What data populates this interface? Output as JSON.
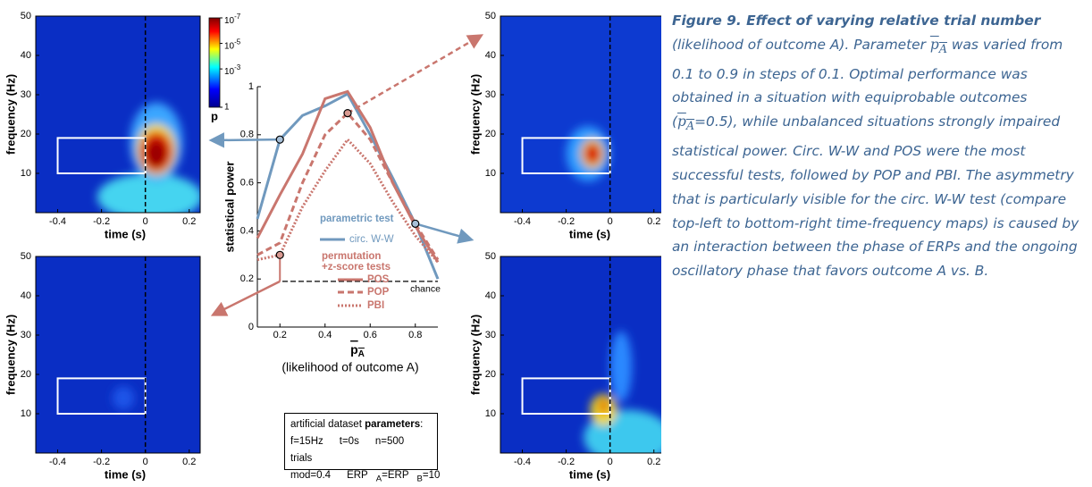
{
  "panels": [
    {
      "ylabel": "frequency (Hz)",
      "xlabel": "time (s)",
      "xticks": [
        -0.4,
        -0.2,
        0,
        0.2
      ],
      "yticks": [
        10,
        20,
        30,
        40,
        50
      ],
      "xlim": [
        -0.5,
        0.25
      ],
      "ylim": [
        0,
        50
      ]
    },
    {
      "ylabel": "frequency (Hz)",
      "xlabel": "time (s)",
      "xticks": [
        -0.4,
        -0.2,
        0,
        0.2
      ],
      "yticks": [
        10,
        20,
        30,
        40,
        50
      ],
      "xlim": [
        -0.5,
        0.25
      ],
      "ylim": [
        0,
        50
      ]
    },
    {
      "ylabel": "frequency (Hz)",
      "xlabel": "time (s)",
      "xticks": [
        -0.4,
        -0.2,
        0,
        0.2
      ],
      "yticks": [
        10,
        20,
        30,
        40,
        50
      ],
      "xlim": [
        -0.5,
        0.25
      ],
      "ylim": [
        0,
        50
      ]
    },
    {
      "ylabel": "frequency (Hz)",
      "xlabel": "time (s)",
      "xticks": [
        -0.4,
        -0.2,
        0,
        0.2
      ],
      "yticks": [
        10,
        20,
        30,
        40,
        50
      ],
      "xlim": [
        -0.5,
        0.25
      ],
      "ylim": [
        0,
        50
      ]
    }
  ],
  "colorbar": {
    "label": "p",
    "clim": [
      1e-07,
      1
    ],
    "ticks": [
      {
        "value": 1e-07,
        "label": {
          "base": "10",
          "exp": "-7"
        }
      },
      {
        "value": 1e-05,
        "label": {
          "base": "10",
          "exp": "-5"
        }
      },
      {
        "value": 0.001,
        "label": {
          "base": "10",
          "exp": "-3"
        }
      },
      1
    ]
  },
  "chart_data": {
    "type": "line",
    "ylabel": "statistical power",
    "xlabel": {
      "base": "p",
      "sub": "A"
    },
    "xlabel_note": "(likelihood of outcome A)",
    "x": [
      0.1,
      0.2,
      0.3,
      0.4,
      0.5,
      0.6,
      0.7,
      0.8,
      0.9
    ],
    "xlim": [
      0.1,
      0.9
    ],
    "ylim": [
      0,
      1
    ],
    "xticks": [
      0.2,
      0.4,
      0.6,
      0.8
    ],
    "yticks": [
      0,
      0.2,
      0.4,
      0.6,
      0.8,
      1
    ],
    "legend_groups": [
      {
        "title": [
          "parametric test"
        ],
        "series": [
          0
        ]
      },
      {
        "title": [
          "permutation",
          "+z-score tests"
        ],
        "series": [
          1,
          2,
          3
        ]
      }
    ],
    "series": [
      {
        "name": "circ. W-W",
        "color": "#7099be",
        "dash": "solid",
        "values": [
          0.45,
          0.78,
          0.88,
          0.92,
          0.97,
          0.8,
          0.62,
          0.43,
          0.2
        ]
      },
      {
        "name": "POS",
        "color": "#c9766e",
        "dash": "solid",
        "values": [
          0.37,
          0.55,
          0.72,
          0.95,
          0.98,
          0.83,
          0.6,
          0.42,
          0.27
        ]
      },
      {
        "name": "POP",
        "color": "#c9766e",
        "dash": "dashed",
        "values": [
          0.3,
          0.35,
          0.6,
          0.8,
          0.89,
          0.78,
          0.6,
          0.43,
          0.28
        ]
      },
      {
        "name": "PBI",
        "color": "#c9766e",
        "dash": "dotted",
        "values": [
          0.28,
          0.3,
          0.5,
          0.65,
          0.78,
          0.68,
          0.52,
          0.38,
          0.27
        ]
      }
    ],
    "chance": {
      "label": "chance",
      "value": 0.19
    }
  },
  "params": {
    "title": [
      {
        "text": "artificial dataset "
      },
      {
        "text": "parameters",
        "bold": true
      },
      {
        "text": ":"
      }
    ],
    "rows": [
      [
        [
          {
            "text": "f=15Hz"
          }
        ],
        [
          {
            "text": "t=0s"
          }
        ],
        [
          {
            "text": "n=500 trials"
          }
        ]
      ],
      [
        [
          {
            "text": "mod=0.4"
          }
        ],
        [
          {
            "text": "ERP"
          },
          {
            "sub": "A"
          },
          {
            "text": "=ERP"
          },
          {
            "sub": "B"
          },
          {
            "text": "=10"
          }
        ]
      ]
    ]
  },
  "caption": {
    "runs": [
      {
        "text": "Figure 9. Effect of varying relative trial number",
        "bold": true
      },
      {
        "text": " (likelihood of outcome A). Parameter "
      },
      {
        "base": "p",
        "sub": "A"
      },
      {
        "text": " was varied from 0.1 to 0.9 in steps of 0.1. Optimal performance was obtained in a situation with equiprobable outcomes ("
      },
      {
        "base": "p",
        "sub": "A"
      },
      {
        "text": "=0.5), while unbalanced situations strongly impaired statistical power. Circ. W-W and POS were the most successful tests, followed by POP and PBI. The asymmetry that is particularly visible for the circ. W-W test (compare top-left to bottom-right time-frequency maps) is caused by an interaction between the phase of ERPs and the ongoing oscillatory phase that favors outcome A vs. B."
      }
    ]
  }
}
